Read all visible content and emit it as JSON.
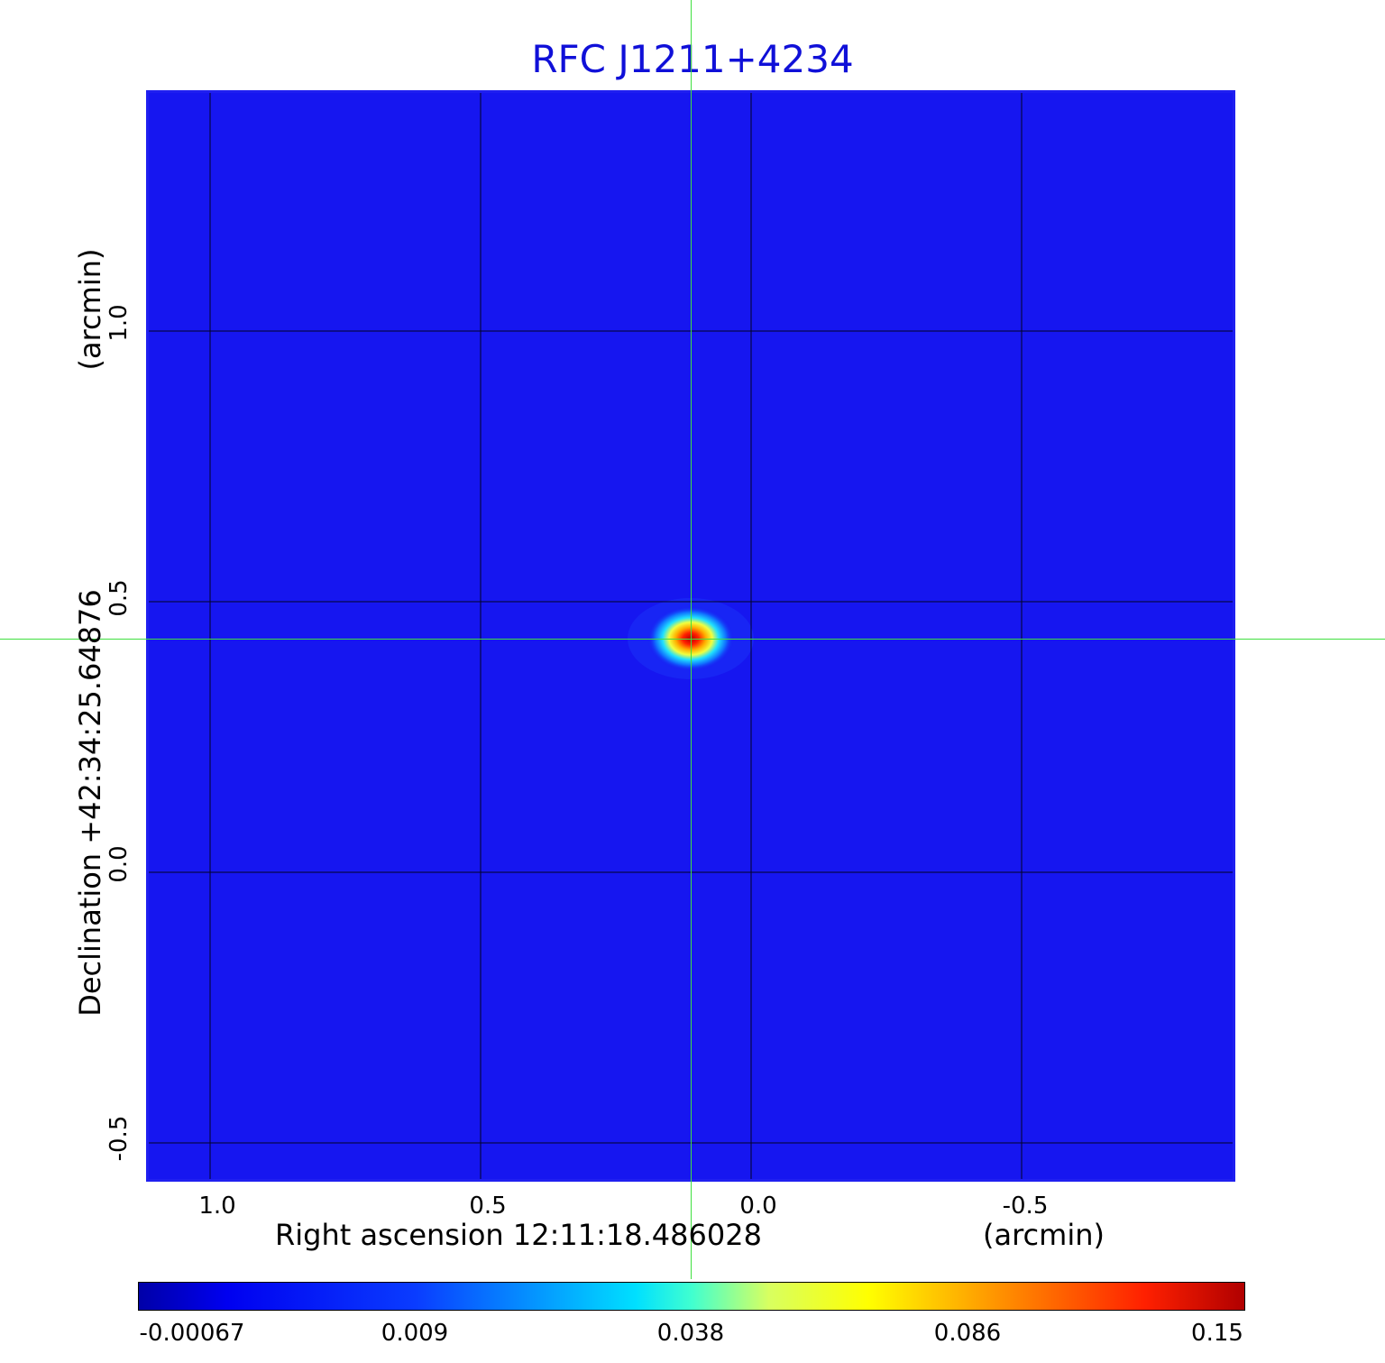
{
  "title": "RFC J1211+4234",
  "x_axis": {
    "label": "Right ascension  12:11:18.486028",
    "unit": "(arcmin)",
    "ticks": [
      "1.0",
      "0.5",
      "0.0",
      "-0.5"
    ]
  },
  "y_axis": {
    "label": "Declination  +42:34:25.64876",
    "unit": "(arcmin)",
    "ticks": [
      "1.0",
      "0.5",
      "0.0",
      "-0.5"
    ]
  },
  "colorbar": {
    "ticks": [
      "-0.00067",
      "0.009",
      "0.038",
      "0.086",
      "0.15"
    ],
    "colormap": "jet"
  },
  "colors": {
    "title": "#1010d8",
    "background_map": "#1616f0",
    "crosshair": "#40e040",
    "grid": "#000000"
  }
}
